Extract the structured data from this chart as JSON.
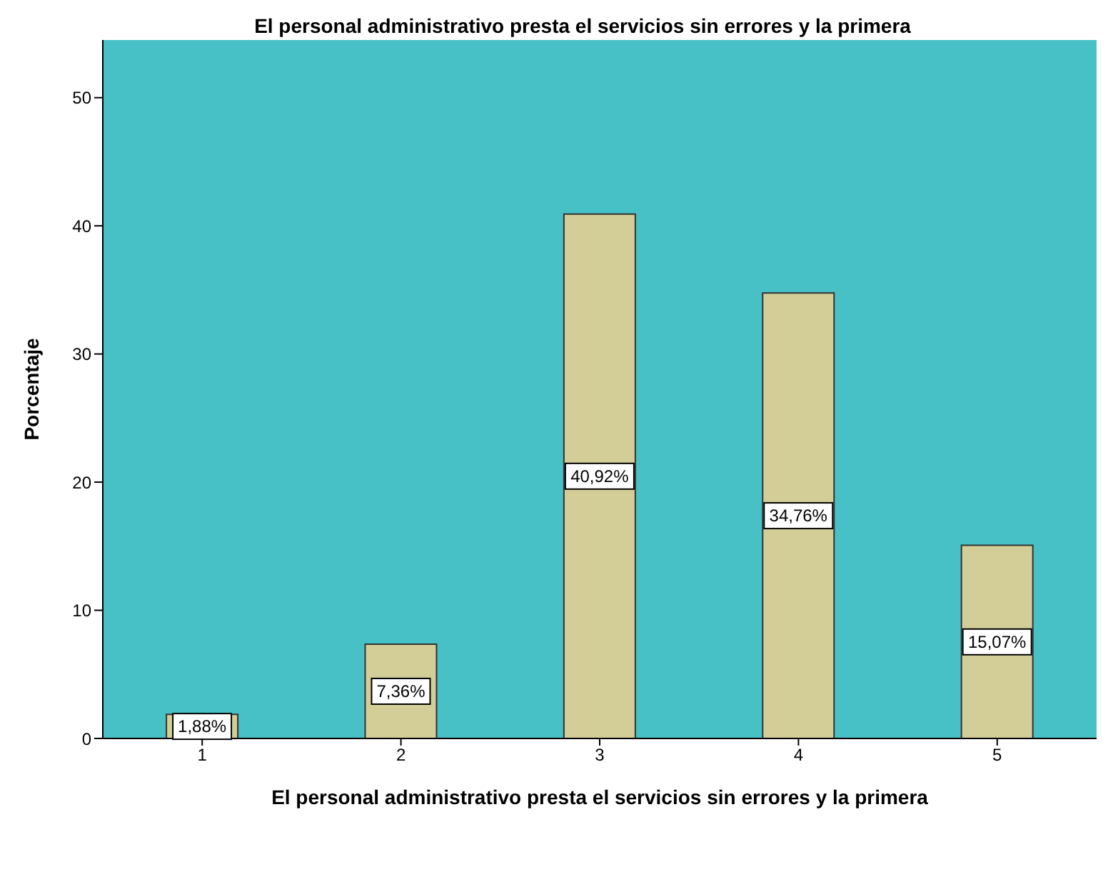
{
  "chart_data": {
    "type": "bar",
    "title": "El personal administrativo presta el servicios sin errores y la primera",
    "xlabel": "El personal administrativo presta el servicios sin errores y la primera",
    "ylabel": "Porcentaje",
    "categories": [
      "1",
      "2",
      "3",
      "4",
      "5"
    ],
    "values": [
      1.88,
      7.36,
      40.92,
      34.76,
      15.07
    ],
    "value_labels": [
      "1,88%",
      "7,36%",
      "40,92%",
      "34,76%",
      "15,07%"
    ],
    "color": "#d3ce97",
    "ylim": [
      0,
      54.5
    ],
    "yticks": [
      0,
      10,
      20,
      30,
      40,
      50
    ],
    "grid": false
  }
}
